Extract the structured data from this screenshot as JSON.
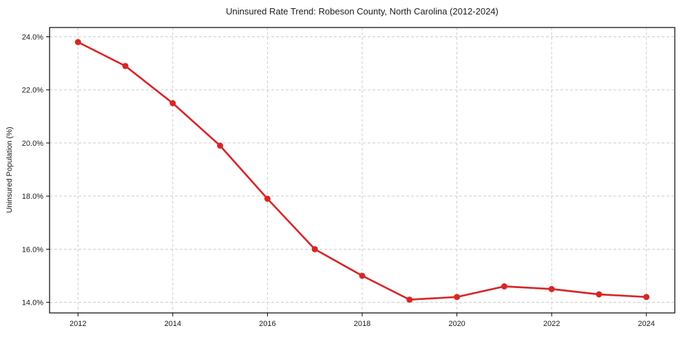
{
  "chart_data": {
    "type": "line",
    "title": "Uninsured Rate Trend: Robeson County, North Carolina (2012-2024)",
    "xlabel": "",
    "ylabel": "Uninsured Population (%)",
    "x": [
      2012,
      2013,
      2014,
      2015,
      2016,
      2017,
      2018,
      2019,
      2020,
      2021,
      2022,
      2023,
      2024
    ],
    "values": [
      23.8,
      22.9,
      21.5,
      19.9,
      17.9,
      16.0,
      15.0,
      14.1,
      14.2,
      14.6,
      14.5,
      14.3,
      14.2
    ],
    "series_name": "Uninsured rate",
    "xlim": [
      2011.4,
      2024.6
    ],
    "ylim": [
      13.6,
      24.35
    ],
    "xticks": [
      2012,
      2014,
      2016,
      2018,
      2020,
      2022,
      2024
    ],
    "xtick_labels": [
      "2012",
      "2014",
      "2016",
      "2018",
      "2020",
      "2022",
      "2024"
    ],
    "yticks": [
      14,
      16,
      18,
      20,
      22,
      24
    ],
    "ytick_labels": [
      "14.0%",
      "16.0%",
      "18.0%",
      "20.0%",
      "22.0%",
      "24.0%"
    ],
    "grid": true,
    "grid_style": "dashed",
    "legend": false,
    "line_color": "#d62728",
    "marker": "circle",
    "marker_radius": 4.5,
    "line_width": 2.7,
    "grid_color": "#cccccc",
    "background_color": "#ffffff",
    "text_color": "#1a1a1a"
  }
}
